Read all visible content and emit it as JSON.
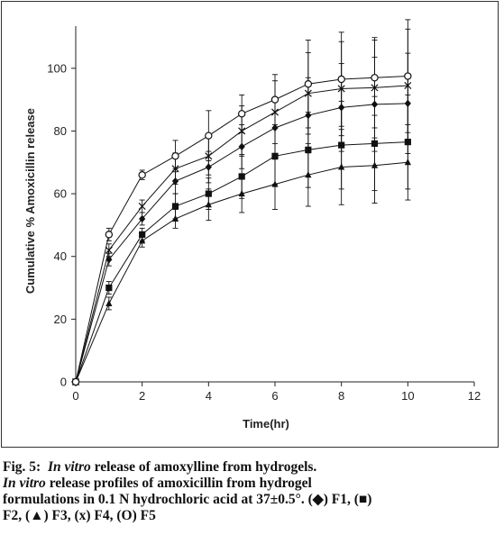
{
  "chart_data": {
    "type": "line",
    "title": "",
    "xlabel": "Time(hr)",
    "ylabel": "Cumulative % Amoxicillin release",
    "xlim": [
      0,
      12
    ],
    "ylim": [
      0,
      110
    ],
    "x_ticks": [
      "0",
      "2",
      "4",
      "6",
      "8",
      "10",
      "12"
    ],
    "y_ticks": [
      "0",
      "20",
      "40",
      "60",
      "80",
      "100"
    ],
    "grid": false,
    "legend": "none",
    "x": [
      0,
      1,
      2,
      3,
      4,
      5,
      6,
      7,
      8,
      9,
      10
    ],
    "series": [
      {
        "name": "F1",
        "marker": "diamond",
        "color": "#111111",
        "values": [
          0,
          39,
          52,
          64,
          68.5,
          75,
          81,
          85,
          87.5,
          88.5,
          88.8
        ],
        "errors": [
          0,
          2,
          2,
          4,
          5,
          7,
          9,
          12,
          14,
          15,
          16
        ]
      },
      {
        "name": "F2",
        "marker": "square",
        "color": "#111111",
        "values": [
          0,
          30,
          47,
          56,
          60,
          65.5,
          72,
          74,
          75.5,
          76,
          76.5
        ],
        "errors": [
          0,
          2,
          2,
          4,
          5,
          7,
          9,
          12,
          14,
          15,
          15
        ]
      },
      {
        "name": "F3",
        "marker": "triangle",
        "color": "#111111",
        "values": [
          0,
          25,
          45,
          52,
          56.5,
          60,
          63,
          66,
          68.5,
          69,
          70
        ],
        "errors": [
          0,
          2,
          2,
          3,
          5,
          6,
          8,
          10,
          12,
          12,
          12
        ]
      },
      {
        "name": "F4",
        "marker": "x",
        "color": "#111111",
        "values": [
          0,
          42,
          56,
          68,
          72,
          80,
          86,
          92,
          93.5,
          93.8,
          94.5
        ],
        "errors": [
          0,
          2,
          2,
          5,
          6,
          8,
          10,
          13,
          15,
          16,
          18
        ]
      },
      {
        "name": "F5",
        "marker": "circle",
        "color": "#111111",
        "values": [
          0,
          47,
          66,
          72,
          78.5,
          85.5,
          90,
          95,
          96.5,
          97,
          97.5
        ],
        "errors": [
          0,
          2,
          1.5,
          5,
          8,
          6,
          8,
          14,
          15,
          12,
          18
        ]
      }
    ]
  },
  "caption": {
    "fig_label": "Fig. 5:",
    "line1_italic": "In vitro",
    "line1_rest": " release of amoxylline from hydrogels.",
    "line2_italic": "In vitro",
    "line2_rest": " release profiles of amoxicillin from hydrogel",
    "line3": "formulations in 0.1 N hydrochloric acid at 37±0.5°. (◆) F1,  (■)",
    "line4": "F2, (▲) F3, (x) F4, (O) F5"
  }
}
